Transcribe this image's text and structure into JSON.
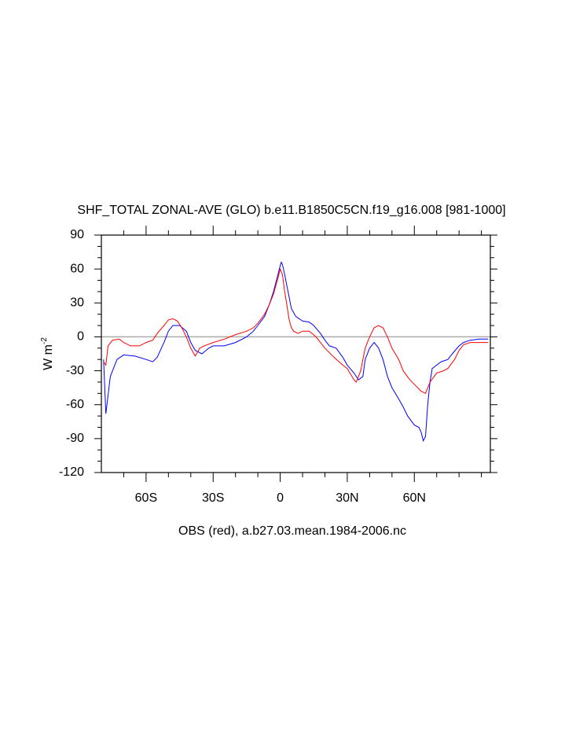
{
  "chart_data": {
    "type": "line",
    "title": "SHF_TOTAL ZONAL-AVE (GLO) b.e11.B1850C5CN.f19_g16.008 [981-1000]",
    "x_label": "OBS (red), a.b27.03.mean.1984-2006.nc",
    "y_label": {
      "text": "W m",
      "superscript": "-2"
    },
    "xlim": [
      -80,
      94
    ],
    "ylim": [
      -120,
      90
    ],
    "xticks": [
      {
        "value": -60,
        "label": "60S"
      },
      {
        "value": -30,
        "label": "30S"
      },
      0,
      {
        "value": 30,
        "label": "30N"
      },
      {
        "value": 60,
        "label": "60N"
      }
    ],
    "yticks": [
      -120,
      -90,
      -60,
      -30,
      0,
      30,
      60,
      90
    ],
    "xminor_ticks": [
      -70,
      -50,
      -40,
      -20,
      -10,
      10,
      20,
      40,
      50,
      70,
      80,
      90
    ],
    "yminor_ticks": [
      -110,
      -100,
      -80,
      -70,
      -50,
      -40,
      -20,
      -10,
      10,
      20,
      40,
      50,
      70,
      80
    ],
    "reference_line": {
      "value": 0,
      "color": "#aaaaaa"
    },
    "series": [
      {
        "color": "#0000ff",
        "x": [
          -79,
          -78,
          -76,
          -73,
          -70,
          -65,
          -60,
          -57,
          -55,
          -52,
          -50,
          -48,
          -45,
          -42,
          -40,
          -38,
          -35,
          -32,
          -30,
          -25,
          -20,
          -15,
          -12,
          -10,
          -7,
          -5,
          -3,
          -1,
          0,
          0.5,
          1,
          2,
          3,
          4,
          5,
          7,
          10,
          13,
          15,
          18,
          20,
          22,
          25,
          28,
          30,
          33,
          35,
          37,
          38,
          40,
          42,
          44,
          46,
          48,
          50,
          53,
          55,
          57,
          60,
          62,
          63,
          64,
          65,
          66,
          67,
          68,
          70,
          72,
          75,
          77,
          80,
          82,
          85,
          89,
          93
        ],
        "values": [
          -20,
          -68,
          -35,
          -20,
          -16,
          -17,
          -20,
          -22,
          -18,
          -5,
          5,
          10,
          10,
          5,
          -5,
          -12,
          -15,
          -10,
          -8,
          -8,
          -5,
          0,
          5,
          10,
          18,
          28,
          40,
          55,
          63,
          66,
          64,
          55,
          45,
          35,
          25,
          18,
          14,
          13,
          10,
          3,
          -3,
          -8,
          -10,
          -18,
          -25,
          -32,
          -38,
          -35,
          -20,
          -10,
          -5,
          -10,
          -20,
          -35,
          -45,
          -55,
          -62,
          -70,
          -78,
          -80,
          -84,
          -92,
          -88,
          -60,
          -40,
          -28,
          -25,
          -22,
          -20,
          -15,
          -8,
          -5,
          -3,
          -2,
          -2
        ]
      },
      {
        "color": "#ff0000",
        "x": [
          -79,
          -78,
          -77,
          -75,
          -72,
          -70,
          -67,
          -63,
          -60,
          -57,
          -55,
          -52,
          -50,
          -48,
          -46,
          -44,
          -42,
          -40,
          -38,
          -36,
          -34,
          -30,
          -25,
          -20,
          -15,
          -12,
          -10,
          -7,
          -5,
          -3,
          -1,
          0,
          1,
          2,
          3,
          4,
          5,
          6,
          8,
          10,
          13,
          16,
          20,
          24,
          28,
          30,
          33,
          34,
          36,
          38,
          40,
          42,
          44,
          46,
          48,
          50,
          53,
          55,
          58,
          60,
          63,
          65,
          67,
          70,
          73,
          75,
          78,
          80,
          82,
          85,
          93
        ],
        "values": [
          -22,
          -25,
          -8,
          -3,
          -2,
          -5,
          -8,
          -8,
          -5,
          -3,
          3,
          10,
          15,
          16,
          14,
          8,
          0,
          -10,
          -17,
          -10,
          -8,
          -5,
          -2,
          2,
          5,
          8,
          12,
          20,
          28,
          38,
          52,
          60,
          55,
          40,
          28,
          15,
          8,
          5,
          3,
          5,
          5,
          0,
          -10,
          -18,
          -25,
          -28,
          -38,
          -40,
          -30,
          -10,
          0,
          8,
          10,
          8,
          0,
          -10,
          -20,
          -30,
          -38,
          -42,
          -48,
          -50,
          -40,
          -32,
          -30,
          -28,
          -20,
          -12,
          -7,
          -5,
          -5
        ]
      }
    ]
  }
}
